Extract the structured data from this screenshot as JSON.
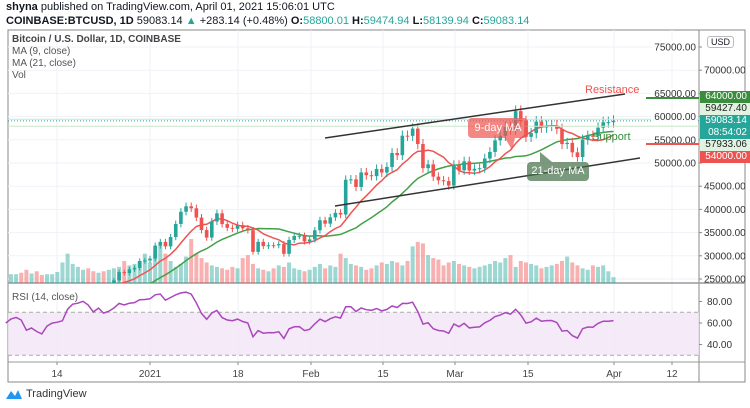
{
  "header": {
    "publisher": "shyna",
    "published_text": "published on TradingView.com, April 01, 2021 15:06:01 UTC",
    "symbol": "COINBASE:BTCUSD, 1D",
    "last": "59083.14",
    "change": "+283.14 (+0.48%)",
    "o_label": "O:",
    "o": "58800.01",
    "h_label": "H:",
    "h": "59474.94",
    "l_label": "L:",
    "l": "58139.94",
    "c_label": "C:",
    "c": "59083.14"
  },
  "legend": {
    "title": "Bitcoin / U.S. Dollar, 1D, COINBASE",
    "ma9": "MA (9, close)",
    "ma21": "MA (21, close)",
    "vol": "Vol",
    "rsi": "RSI (14, close)"
  },
  "annotations": {
    "resistance": "Resistance",
    "support": "Support",
    "ma9_callout": "9-day MA",
    "ma21_callout": "21-day MA"
  },
  "price_labels": {
    "currency": "USD",
    "resistance_level": "64000.00",
    "high_line": "59427.40",
    "last_price": "59083.14",
    "countdown": "08:54:02",
    "low_line": "57933.06",
    "support_level": "54000.00"
  },
  "colors": {
    "up": "#26a69a",
    "down": "#ef5350",
    "ma9": "#ef5350",
    "ma21": "#43a047",
    "rsi": "#ab47bc",
    "resistance": "#388e3c",
    "support": "#ef5350"
  },
  "branding": {
    "logo_text": "TradingView"
  },
  "chart_data": {
    "type": "candlestick",
    "interval": "1D",
    "start_date": "2020-12-04",
    "ylim": [
      25000,
      75000
    ],
    "y_ticks": [
      "75000.00",
      "70000.00",
      "65000.00",
      "60000.00",
      "55000.00",
      "50000.00",
      "45000.00",
      "40000.00",
      "35000.00",
      "30000.00",
      "25000.00"
    ],
    "x_ticks": [
      "14",
      "2021",
      "18",
      "Feb",
      "15",
      "Mar",
      "15",
      "Apr",
      "12"
    ],
    "rsi_ticks": [
      "80.00",
      "60.00",
      "40.00"
    ],
    "rsi_bands": [
      30,
      70
    ],
    "close": [
      18650,
      19150,
      19360,
      19170,
      18320,
      18550,
      18250,
      18030,
      18800,
      19170,
      19270,
      19440,
      21360,
      22800,
      23130,
      23850,
      23480,
      22730,
      23820,
      23240,
      23730,
      24710,
      26490,
      26280,
      27080,
      27380,
      28880,
      28990,
      29400,
      32200,
      33000,
      32030,
      34040,
      36860,
      39490,
      40670,
      40240,
      38240,
      35550,
      33930,
      37390,
      39150,
      36830,
      36030,
      35820,
      36630,
      35930,
      35510,
      30850,
      33010,
      32090,
      32280,
      32260,
      32520,
      30430,
      33420,
      34260,
      34320,
      33110,
      33530,
      35510,
      37660,
      36930,
      38290,
      39260,
      38900,
      46400,
      46480,
      44840,
      47970,
      47360,
      47170,
      48720,
      47940,
      49150,
      52150,
      51680,
      55890,
      55850,
      57410,
      54090,
      48890,
      49710,
      47060,
      46280,
      46100,
      45140,
      49590,
      48440,
      50350,
      48370,
      48750,
      48880,
      50970,
      52380,
      54880,
      55860,
      57770,
      57220,
      61190,
      59000,
      55640,
      56430,
      58920,
      57650,
      58030,
      58100,
      57350,
      54080,
      54340,
      52300,
      51290,
      55030,
      55860,
      55780,
      57610,
      58790,
      58800,
      59083
    ],
    "volume": [
      20,
      12,
      12,
      14,
      18,
      13,
      16,
      11,
      12,
      12,
      15,
      28,
      40,
      26,
      22,
      18,
      20,
      16,
      14,
      16,
      18,
      20,
      22,
      30,
      24,
      26,
      30,
      40,
      28,
      44,
      52,
      40,
      30,
      22,
      26,
      36,
      60,
      40,
      34,
      28,
      24,
      22,
      20,
      18,
      22,
      20,
      34,
      38,
      26,
      20,
      18,
      16,
      20,
      24,
      22,
      28,
      20,
      18,
      16,
      18,
      22,
      26,
      20,
      24,
      22,
      40,
      34,
      26,
      24,
      22,
      18,
      20,
      24,
      28,
      26,
      30,
      28,
      24,
      30,
      50,
      56,
      54,
      38,
      34,
      32,
      24,
      28,
      30,
      26,
      24,
      22,
      20,
      22,
      24,
      26,
      30,
      28,
      34,
      38,
      22,
      30,
      28,
      26,
      24,
      20,
      22,
      24,
      26,
      30,
      36,
      28,
      24,
      20,
      18,
      24,
      22,
      24,
      16,
      8
    ]
  }
}
